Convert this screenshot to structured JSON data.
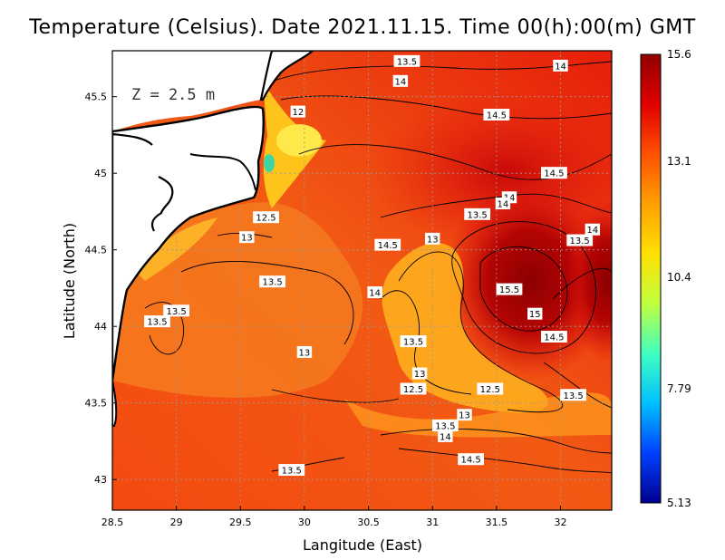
{
  "title": "Temperature (Celsius). Date 2021.11.15. Time 00(h):00(m)  GMT",
  "depth_label": "Z = 2.5 m",
  "x_axis": {
    "title": "Langitude (East)",
    "ticks": [
      {
        "value": 28.5,
        "label": "28.5"
      },
      {
        "value": 29,
        "label": "29"
      },
      {
        "value": 29.5,
        "label": "29.5"
      },
      {
        "value": 30,
        "label": "30"
      },
      {
        "value": 30.5,
        "label": "30.5"
      },
      {
        "value": 31,
        "label": "31"
      },
      {
        "value": 31.5,
        "label": "31.5"
      },
      {
        "value": 32,
        "label": "32"
      }
    ],
    "range": [
      28.5,
      32.4
    ]
  },
  "y_axis": {
    "title": "Latitude (North)",
    "ticks": [
      {
        "value": 43,
        "label": "43"
      },
      {
        "value": 43.5,
        "label": "43.5"
      },
      {
        "value": 44,
        "label": "44"
      },
      {
        "value": 44.5,
        "label": "44.5"
      },
      {
        "value": 45,
        "label": "45"
      },
      {
        "value": 45.5,
        "label": "45.5"
      }
    ],
    "range": [
      42.8,
      45.8
    ]
  },
  "colorbar": {
    "labels": [
      {
        "value": 15.6,
        "label": "15.6"
      },
      {
        "value": 13.1,
        "label": "13.1"
      },
      {
        "value": 10.4,
        "label": "10.4"
      },
      {
        "value": 7.79,
        "label": "7.79"
      },
      {
        "value": 5.13,
        "label": "5.13"
      }
    ],
    "min": 5.13,
    "max": 15.6,
    "colors": [
      "#00008f",
      "#0040ff",
      "#00c0ff",
      "#40ffc0",
      "#c0ff40",
      "#ffe000",
      "#ffa000",
      "#ff5000",
      "#e00000",
      "#900000"
    ]
  },
  "contour_labels": [
    {
      "lon": 30.8,
      "lat": 45.73,
      "text": "13.5"
    },
    {
      "lon": 32.0,
      "lat": 45.7,
      "text": "14"
    },
    {
      "lon": 30.75,
      "lat": 45.6,
      "text": "14"
    },
    {
      "lon": 29.95,
      "lat": 45.4,
      "text": "12"
    },
    {
      "lon": 31.5,
      "lat": 45.38,
      "text": "14.5"
    },
    {
      "lon": 31.95,
      "lat": 45.0,
      "text": "14.5"
    },
    {
      "lon": 31.6,
      "lat": 44.84,
      "text": "14"
    },
    {
      "lon": 31.55,
      "lat": 44.8,
      "text": "14"
    },
    {
      "lon": 31.35,
      "lat": 44.73,
      "text": "13.5"
    },
    {
      "lon": 29.7,
      "lat": 44.71,
      "text": "12.5"
    },
    {
      "lon": 32.25,
      "lat": 44.63,
      "text": "14"
    },
    {
      "lon": 32.15,
      "lat": 44.56,
      "text": "13.5"
    },
    {
      "lon": 29.55,
      "lat": 44.58,
      "text": "13"
    },
    {
      "lon": 31.0,
      "lat": 44.57,
      "text": "13"
    },
    {
      "lon": 30.65,
      "lat": 44.53,
      "text": "14.5"
    },
    {
      "lon": 29.75,
      "lat": 44.29,
      "text": "13.5"
    },
    {
      "lon": 31.6,
      "lat": 44.24,
      "text": "15.5"
    },
    {
      "lon": 30.55,
      "lat": 44.22,
      "text": "14"
    },
    {
      "lon": 29.0,
      "lat": 44.1,
      "text": "13.5"
    },
    {
      "lon": 28.85,
      "lat": 44.03,
      "text": "13.5"
    },
    {
      "lon": 31.8,
      "lat": 44.08,
      "text": "15"
    },
    {
      "lon": 31.95,
      "lat": 43.93,
      "text": "14.5"
    },
    {
      "lon": 30.85,
      "lat": 43.9,
      "text": "13.5"
    },
    {
      "lon": 30.0,
      "lat": 43.83,
      "text": "13"
    },
    {
      "lon": 30.9,
      "lat": 43.69,
      "text": "13"
    },
    {
      "lon": 30.85,
      "lat": 43.59,
      "text": "12.5"
    },
    {
      "lon": 31.45,
      "lat": 43.59,
      "text": "12.5"
    },
    {
      "lon": 32.1,
      "lat": 43.55,
      "text": "13.5"
    },
    {
      "lon": 31.25,
      "lat": 43.42,
      "text": "13"
    },
    {
      "lon": 31.1,
      "lat": 43.35,
      "text": "13.5"
    },
    {
      "lon": 31.1,
      "lat": 43.28,
      "text": "14"
    },
    {
      "lon": 31.3,
      "lat": 43.13,
      "text": "14.5"
    },
    {
      "lon": 29.9,
      "lat": 43.06,
      "text": "13.5"
    }
  ]
}
